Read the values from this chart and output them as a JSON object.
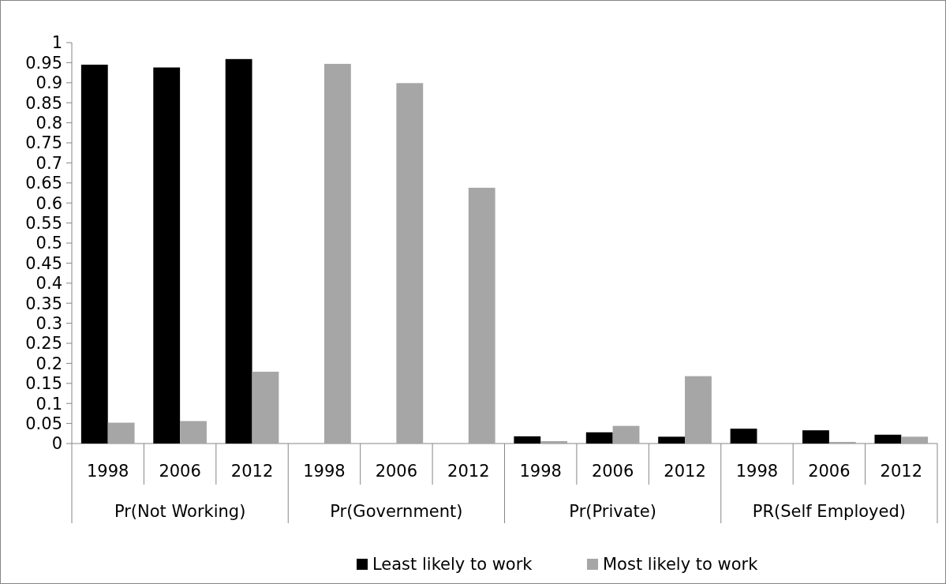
{
  "chart_data": {
    "type": "bar",
    "categories": [
      "1998",
      "2006",
      "2012",
      "1998",
      "2006",
      "2012",
      "1998",
      "2006",
      "2012",
      "1998",
      "2006",
      "2012"
    ],
    "annotations": [
      "Pr(Not Working)",
      "Pr(Government)",
      "Pr(Private)",
      "PR(Self Employed)"
    ],
    "series": [
      {
        "name": "Least likely to work",
        "color": "#000000",
        "values": [
          0.945,
          0.938,
          0.959,
          0,
          0,
          0,
          0.018,
          0.028,
          0.017,
          0.037,
          0.033,
          0.022
        ]
      },
      {
        "name": "Most likely to work",
        "color": "#a6a6a6",
        "values": [
          0.052,
          0.056,
          0.179,
          0.947,
          0.899,
          0.638,
          0.006,
          0.044,
          0.168,
          0,
          0.004,
          0.017
        ]
      }
    ],
    "ylim": [
      0,
      1
    ],
    "yticks": [
      0,
      0.05,
      0.1,
      0.15,
      0.2,
      0.25,
      0.3,
      0.35,
      0.4,
      0.45,
      0.5,
      0.55,
      0.6,
      0.65,
      0.7,
      0.75,
      0.8,
      0.85,
      0.9,
      0.95,
      1
    ],
    "legend": "bottom",
    "grid": false
  }
}
